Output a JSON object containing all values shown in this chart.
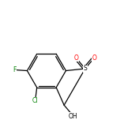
{
  "bg_color": "#ffffff",
  "line_color": "#000000",
  "atom_colors": {
    "S": "#000000",
    "O": "#ff0000",
    "F": "#008000",
    "Cl": "#008000",
    "OH": "#000000"
  },
  "figsize": [
    1.52,
    1.52
  ],
  "dpi": 100,
  "line_width": 0.9,
  "font_size": 5.5,
  "xlim": [
    0.5,
    7.5
  ],
  "ylim": [
    1.0,
    8.0
  ]
}
